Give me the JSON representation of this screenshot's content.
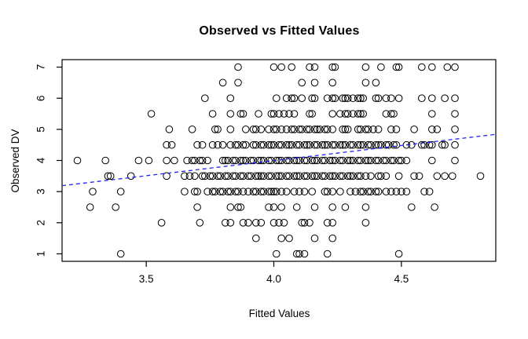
{
  "chart_data": {
    "type": "scatter",
    "title": "Observed vs Fitted Values",
    "xlabel": "Fitted Values",
    "ylabel": "Observed DV",
    "xlim": [
      3.17,
      4.87
    ],
    "ylim": [
      0.76,
      7.24
    ],
    "xticks": [
      3.5,
      4.0,
      4.5
    ],
    "xtick_labels": [
      "3.5",
      "4.0",
      "4.5"
    ],
    "yticks": [
      1,
      2,
      3,
      4,
      5,
      6,
      7
    ],
    "ytick_labels": [
      "1",
      "2",
      "3",
      "4",
      "5",
      "6",
      "7"
    ],
    "grid": false,
    "legend": "none",
    "marker": "open-circle",
    "marker_color": "#000000",
    "fit_line": {
      "style": "dashed",
      "color": "#2222ee",
      "points": [
        [
          3.17,
          3.19
        ],
        [
          4.87,
          4.84
        ]
      ]
    },
    "rows": [
      {
        "y": 7,
        "x": [
          3.86,
          4.0,
          4.03,
          4.07,
          4.14,
          4.16,
          4.23,
          4.24,
          4.36,
          4.42,
          4.48,
          4.49,
          4.58,
          4.62,
          4.68,
          4.71
        ]
      },
      {
        "y": 6.5,
        "x": [
          3.8,
          3.86,
          4.11,
          4.16,
          4.23,
          4.36,
          4.4
        ]
      },
      {
        "y": 6,
        "x": [
          3.73,
          3.83,
          4.01,
          4.05,
          4.07,
          4.08,
          4.11,
          4.15,
          4.16,
          4.21,
          4.23,
          4.24,
          4.27,
          4.28,
          4.29,
          4.31,
          4.33,
          4.34,
          4.35,
          4.4,
          4.41,
          4.44,
          4.46,
          4.49,
          4.58,
          4.62,
          4.67,
          4.71
        ]
      },
      {
        "y": 5.5,
        "x": [
          3.52,
          3.76,
          3.83,
          3.87,
          3.88,
          3.94,
          3.99,
          4.0,
          4.02,
          4.04,
          4.06,
          4.08,
          4.14,
          4.15,
          4.23,
          4.26,
          4.28,
          4.29,
          4.31,
          4.33,
          4.34,
          4.35,
          4.44,
          4.46,
          4.47,
          4.62,
          4.71
        ]
      },
      {
        "y": 5,
        "x": [
          3.59,
          3.68,
          3.77,
          3.78,
          3.83,
          3.89,
          3.92,
          3.93,
          3.95,
          3.98,
          4.0,
          4.01,
          4.03,
          4.05,
          4.07,
          4.08,
          4.1,
          4.11,
          4.13,
          4.14,
          4.16,
          4.17,
          4.18,
          4.2,
          4.21,
          4.23,
          4.27,
          4.28,
          4.29,
          4.33,
          4.34,
          4.36,
          4.37,
          4.39,
          4.41,
          4.46,
          4.48,
          4.55,
          4.62,
          4.64,
          4.71
        ]
      },
      {
        "y": 4.5,
        "x": [
          3.58,
          3.6,
          3.7,
          3.72,
          3.76,
          3.78,
          3.8,
          3.83,
          3.85,
          3.86,
          3.88,
          3.89,
          3.92,
          3.93,
          3.95,
          3.96,
          3.98,
          3.99,
          4.0,
          4.02,
          4.03,
          4.05,
          4.06,
          4.07,
          4.09,
          4.1,
          4.12,
          4.13,
          4.14,
          4.16,
          4.17,
          4.19,
          4.2,
          4.21,
          4.23,
          4.24,
          4.26,
          4.27,
          4.28,
          4.3,
          4.31,
          4.33,
          4.34,
          4.35,
          4.37,
          4.38,
          4.4,
          4.41,
          4.42,
          4.44,
          4.45,
          4.47,
          4.48,
          4.52,
          4.54,
          4.58,
          4.59,
          4.61,
          4.62,
          4.66,
          4.67,
          4.71
        ]
      },
      {
        "y": 4,
        "x": [
          3.23,
          3.34,
          3.47,
          3.51,
          3.58,
          3.61,
          3.66,
          3.68,
          3.69,
          3.71,
          3.72,
          3.74,
          3.8,
          3.81,
          3.82,
          3.84,
          3.85,
          3.87,
          3.88,
          3.89,
          3.91,
          3.92,
          3.94,
          3.95,
          3.96,
          3.98,
          3.99,
          4.01,
          4.02,
          4.03,
          4.05,
          4.06,
          4.08,
          4.09,
          4.1,
          4.12,
          4.13,
          4.15,
          4.16,
          4.17,
          4.19,
          4.2,
          4.22,
          4.23,
          4.24,
          4.26,
          4.27,
          4.29,
          4.3,
          4.31,
          4.33,
          4.34,
          4.36,
          4.37,
          4.38,
          4.4,
          4.41,
          4.43,
          4.44,
          4.46,
          4.47,
          4.49,
          4.5,
          4.52,
          4.62,
          4.71
        ]
      },
      {
        "y": 3.5,
        "x": [
          3.35,
          3.36,
          3.44,
          3.58,
          3.65,
          3.67,
          3.69,
          3.72,
          3.73,
          3.75,
          3.76,
          3.78,
          3.79,
          3.81,
          3.82,
          3.84,
          3.85,
          3.87,
          3.88,
          3.9,
          3.91,
          3.93,
          3.94,
          3.95,
          3.96,
          3.98,
          3.99,
          4.01,
          4.02,
          4.03,
          4.05,
          4.06,
          4.08,
          4.09,
          4.1,
          4.12,
          4.13,
          4.15,
          4.16,
          4.17,
          4.19,
          4.2,
          4.22,
          4.23,
          4.24,
          4.26,
          4.27,
          4.29,
          4.3,
          4.31,
          4.33,
          4.34,
          4.36,
          4.38,
          4.41,
          4.42,
          4.44,
          4.49,
          4.55,
          4.57,
          4.64,
          4.67,
          4.7,
          4.81
        ]
      },
      {
        "y": 3,
        "x": [
          3.29,
          3.4,
          3.65,
          3.69,
          3.7,
          3.74,
          3.76,
          3.77,
          3.79,
          3.8,
          3.82,
          3.83,
          3.85,
          3.86,
          3.88,
          3.9,
          3.92,
          3.93,
          3.95,
          3.96,
          3.98,
          3.99,
          4.0,
          4.01,
          4.03,
          4.05,
          4.08,
          4.1,
          4.12,
          4.15,
          4.2,
          4.21,
          4.23,
          4.26,
          4.3,
          4.32,
          4.34,
          4.35,
          4.37,
          4.38,
          4.4,
          4.41,
          4.44,
          4.46,
          4.48,
          4.5,
          4.52,
          4.59,
          4.61
        ]
      },
      {
        "y": 2.5,
        "x": [
          3.28,
          3.38,
          3.7,
          3.83,
          3.86,
          3.87,
          3.98,
          4.0,
          4.03,
          4.09,
          4.16,
          4.23,
          4.28,
          4.36,
          4.54,
          4.63
        ]
      },
      {
        "y": 2,
        "x": [
          3.56,
          3.71,
          3.81,
          3.83,
          3.88,
          3.9,
          3.93,
          3.95,
          4.0,
          4.02,
          4.04,
          4.11,
          4.12,
          4.14,
          4.21,
          4.23,
          4.36
        ]
      },
      {
        "y": 1.5,
        "x": [
          3.93,
          4.03,
          4.06,
          4.16,
          4.23
        ]
      },
      {
        "y": 1,
        "x": [
          3.4,
          4.01,
          4.09,
          4.1,
          4.12,
          4.21,
          4.49
        ]
      }
    ]
  }
}
